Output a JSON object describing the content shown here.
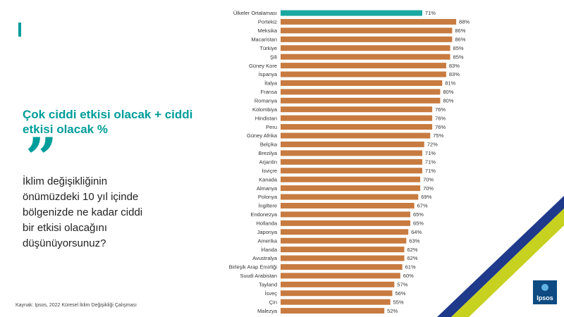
{
  "headline": "Çok ciddi etkisi olacak + ciddi etkisi olacak %",
  "quote_glyph": "”",
  "question": "İklim değişikliğinin önümüzdeki 10 yıl içinde bölgenizde ne kadar ciddi bir etkisi olacağını düşünüyorsunuz?",
  "source": "Kaynak: Ipsos, 2022 Küresel İklim Değişikliği Çalışması",
  "logo": {
    "text": "Ipsos"
  },
  "colors": {
    "accent": "#009d9a",
    "bar": "#c87b40",
    "highlight": "#1aa8a0",
    "navy": "#1f3a8a",
    "lime": "#c7d11f"
  },
  "chart_data": {
    "type": "bar",
    "orientation": "horizontal",
    "value_suffix": "%",
    "xlim": [
      0,
      100
    ],
    "highlight_index": 0,
    "categories": [
      "Ülkeler Ortalaması",
      "Portekiz",
      "Meksika",
      "Macaristan",
      "Türkiye",
      "Şili",
      "Güney Kore",
      "İspanya",
      "İtalya",
      "Fransa",
      "Romanya",
      "Kolombiya",
      "Hindistan",
      "Peru",
      "Güney Afrika",
      "Belçika",
      "Brezilya",
      "Arjantin",
      "İsviçre",
      "Kanada",
      "Almanya",
      "Polonya",
      "İngiltere",
      "Endonezya",
      "Hollanda",
      "Japonya",
      "Amerika",
      "İrlanda",
      "Avustralya",
      "Birleşik Arap Emirliği",
      "Suudi Arabistan",
      "Tayland",
      "İsveç",
      "Çin",
      "Malezya"
    ],
    "values": [
      71,
      88,
      86,
      86,
      85,
      85,
      83,
      83,
      81,
      80,
      80,
      76,
      76,
      76,
      75,
      72,
      71,
      71,
      71,
      70,
      70,
      69,
      67,
      65,
      65,
      64,
      63,
      62,
      62,
      61,
      60,
      57,
      56,
      55,
      52
    ],
    "labels": [
      "71%",
      "88%",
      "86%",
      "86%",
      "85%",
      "85%",
      "83%",
      "83%",
      "81%",
      "80%",
      "80%",
      "76%",
      "76%",
      "76%",
      "75%",
      "72%",
      "71%",
      "71%",
      "71%",
      "70%",
      "70%",
      "69%",
      "67%",
      "65%",
      "65%",
      "64%",
      "63%",
      "62%",
      "62%",
      "61%",
      "60%",
      "57%",
      "56%",
      "55%",
      "52%"
    ]
  }
}
